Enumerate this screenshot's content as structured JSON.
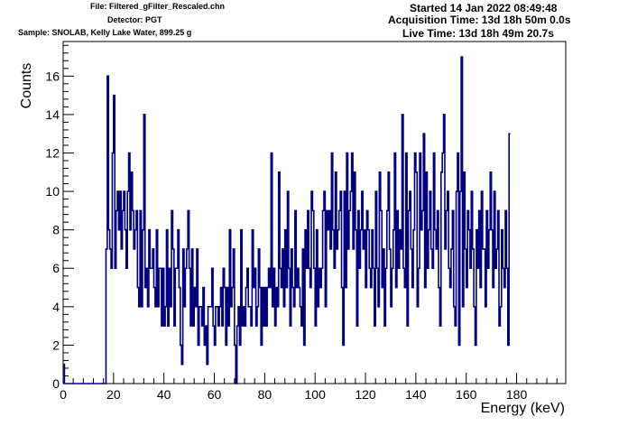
{
  "header": {
    "file": "File: Filtered_gFilter_Rescaled.chn",
    "detector": "Detector: PGT",
    "sample": "Sample: SNOLAB, Kelly Lake Water, 899.25 g",
    "started": "Started 14 Jan 2022 08:49:48",
    "acquisition_time": "Acquisition Time: 13d 18h 50m 0.0s",
    "live_time": "Live Time: 13d 18h 49m 20.7s"
  },
  "chart_data": {
    "type": "histogram",
    "xlabel": "Energy (keV)",
    "ylabel": "Counts",
    "xlim": [
      0,
      199.5
    ],
    "ylim": [
      0,
      17.8
    ],
    "x_ticks": [
      0,
      20,
      40,
      60,
      80,
      100,
      120,
      140,
      160,
      180
    ],
    "y_ticks": [
      0,
      2,
      4,
      6,
      8,
      10,
      12,
      14,
      16
    ],
    "bin_start": 0,
    "bin_width": 0.5,
    "line_color": "#00007f",
    "values": [
      1,
      0,
      0,
      0,
      0,
      0,
      0,
      0,
      0,
      0,
      0,
      0,
      0,
      0,
      0,
      0,
      0,
      0,
      0,
      0,
      0,
      0,
      0,
      0,
      0,
      0,
      0,
      0,
      0,
      0,
      0,
      0,
      0,
      0,
      7,
      16,
      8,
      7,
      6,
      12,
      15,
      6,
      9,
      10,
      8,
      10,
      7,
      9,
      10,
      8,
      6,
      10,
      12,
      8,
      11,
      9,
      7,
      8,
      9,
      5,
      4,
      9,
      4,
      8,
      14,
      5,
      6,
      4,
      8,
      6,
      6,
      7,
      5,
      4,
      8,
      4,
      6,
      6,
      3,
      6,
      3,
      4,
      8,
      3,
      6,
      4,
      9,
      7,
      3,
      6,
      6,
      8,
      5,
      2,
      1,
      7,
      4,
      6,
      7,
      9,
      6,
      3,
      7,
      3,
      5,
      4,
      7,
      2,
      4,
      4,
      3,
      5,
      2,
      3,
      1,
      4,
      4,
      4,
      6,
      3,
      2,
      4,
      4,
      3,
      4,
      5,
      3,
      6,
      5,
      2,
      5,
      3,
      8,
      4,
      5,
      7,
      2,
      0,
      3,
      4,
      2,
      8,
      3,
      4,
      3,
      5,
      6,
      4,
      4,
      3,
      8,
      5,
      6,
      3,
      4,
      7,
      5,
      2,
      5,
      3,
      5,
      3,
      5,
      6,
      5,
      12,
      4,
      6,
      3,
      5,
      4,
      11,
      6,
      5,
      7,
      4,
      8,
      5,
      10,
      6,
      3,
      7,
      5,
      4,
      9,
      5,
      6,
      5,
      4,
      3,
      7,
      2,
      8,
      6,
      9,
      6,
      5,
      10,
      9,
      6,
      3,
      8,
      4,
      6,
      5,
      6,
      9,
      10,
      4,
      9,
      8,
      9,
      7,
      12,
      8,
      6,
      11,
      7,
      8,
      9,
      10,
      5,
      2,
      10,
      5,
      12,
      7,
      9,
      10,
      12,
      7,
      11,
      8,
      3,
      9,
      6,
      8,
      10,
      7,
      8,
      5,
      9,
      8,
      6,
      5,
      8,
      6,
      3,
      10,
      6,
      4,
      11,
      9,
      5,
      7,
      3,
      6,
      9,
      11,
      7,
      4,
      6,
      8,
      12,
      5,
      9,
      6,
      8,
      7,
      14,
      6,
      5,
      12,
      3,
      9,
      10,
      7,
      5,
      8,
      12,
      11,
      4,
      6,
      12,
      8,
      9,
      13,
      5,
      11,
      6,
      8,
      10,
      7,
      6,
      12,
      8,
      7,
      9,
      5,
      3,
      11,
      12,
      14,
      7,
      9,
      10,
      6,
      5,
      7,
      9,
      4,
      3,
      10,
      12,
      2,
      10,
      17,
      4,
      11,
      7,
      5,
      9,
      8,
      6,
      10,
      7,
      4,
      2,
      8,
      6,
      9,
      5,
      10,
      7,
      7,
      4,
      9,
      6,
      8,
      11,
      8,
      5,
      10,
      6,
      7,
      9,
      3,
      4,
      8,
      6,
      5,
      9,
      6,
      2,
      13
    ]
  }
}
